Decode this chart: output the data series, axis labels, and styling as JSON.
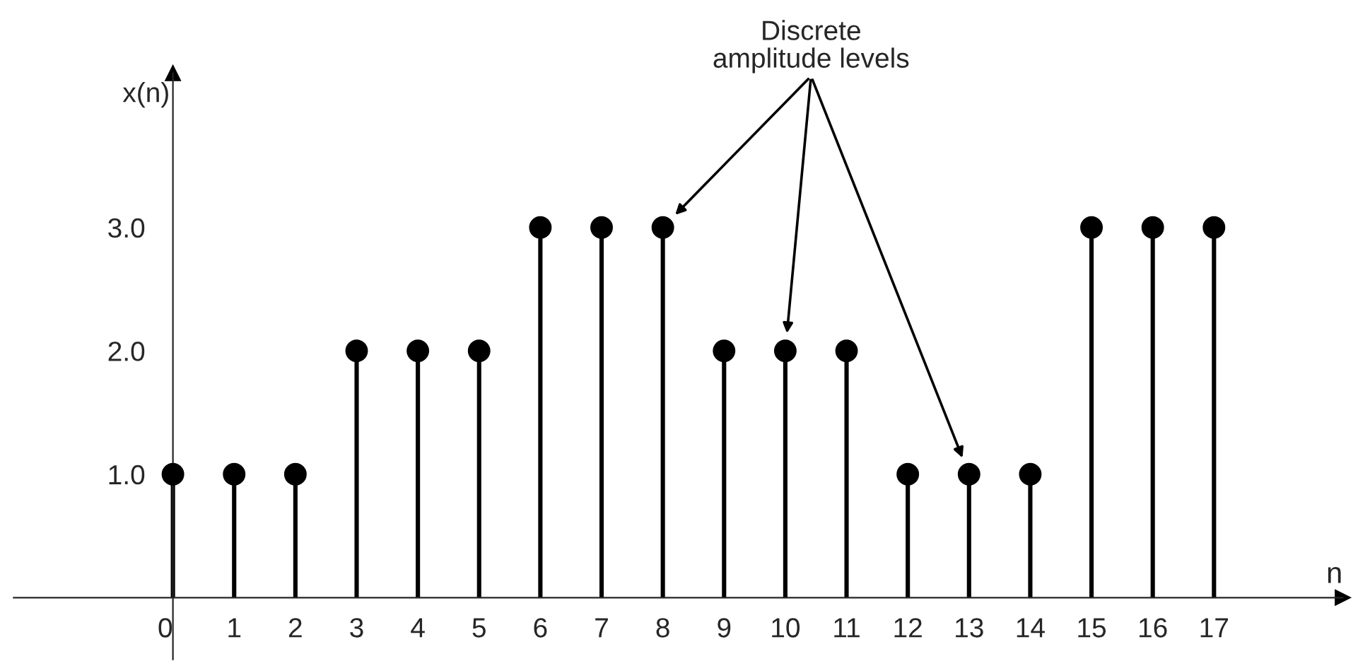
{
  "chart_data": {
    "type": "lollipop",
    "xlabel": "n",
    "ylabel": "x(n)",
    "x": [
      0,
      1,
      2,
      3,
      4,
      5,
      6,
      7,
      8,
      9,
      10,
      11,
      12,
      13,
      14,
      15,
      16,
      17
    ],
    "series": [
      {
        "color": "#000000",
        "values": [
          1,
          1,
          1,
          2,
          2,
          2,
          3,
          3,
          3,
          2,
          2,
          2,
          1,
          1,
          1,
          3,
          3,
          3
        ]
      }
    ],
    "xlim": [
      -2.6,
      19.1
    ],
    "ylim": [
      -0.5,
      4.25
    ],
    "xticks": [
      0,
      1,
      2,
      3,
      4,
      5,
      6,
      7,
      8,
      9,
      10,
      11,
      12,
      13,
      14,
      15,
      16,
      17
    ],
    "yticks": [
      {
        "value": 1,
        "label": "1.0"
      },
      {
        "value": 2,
        "label": "2.0"
      },
      {
        "value": 3,
        "label": "3.0"
      }
    ],
    "marker": "circle",
    "grid": false,
    "annotations": [
      "Discrete\namplitude levels"
    ]
  }
}
